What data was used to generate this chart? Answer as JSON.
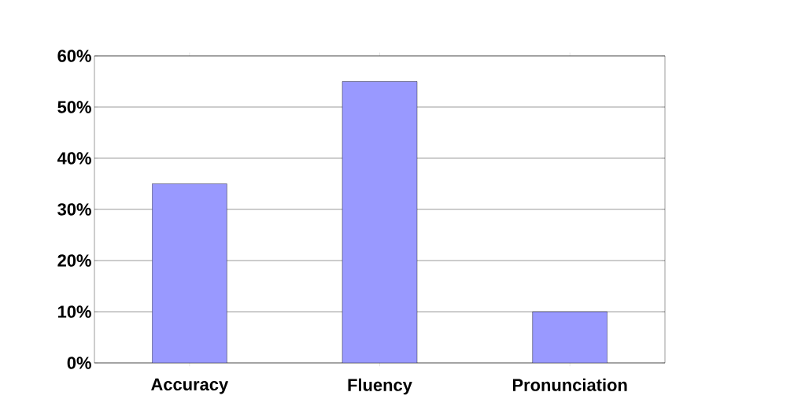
{
  "chart_data": {
    "type": "bar",
    "categories": [
      "Accuracy",
      "Fluency",
      "Pronunciation"
    ],
    "series": [
      {
        "color": "#9999ff",
        "values": [
          35,
          55,
          10
        ]
      }
    ],
    "ylim": [
      0,
      60
    ],
    "yticks": [
      {
        "value": 0,
        "label": "0%"
      },
      {
        "value": 10,
        "label": "10%"
      },
      {
        "value": 20,
        "label": "20%"
      },
      {
        "value": 30,
        "label": "30%"
      },
      {
        "value": 40,
        "label": "40%"
      },
      {
        "value": 50,
        "label": "50%"
      },
      {
        "value": 60,
        "label": "60%"
      }
    ],
    "grid": "y"
  }
}
